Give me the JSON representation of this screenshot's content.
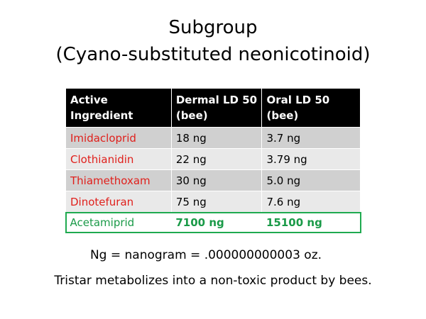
{
  "title": [
    "Subgroup",
    "(Cyano-substituted neonicotinoid)"
  ],
  "table": {
    "header": [
      [
        "Active",
        "Ingredient"
      ],
      [
        "Dermal LD 50",
        "(bee)"
      ],
      [
        "Oral LD 50",
        "(bee)"
      ]
    ],
    "rows": [
      [
        "Imidacloprid",
        "18 ng",
        "3.7 ng"
      ],
      [
        "Clothianidin",
        "22 ng",
        "3.79 ng"
      ],
      [
        "Thiamethoxam",
        "30 ng",
        "5.0 ng"
      ],
      [
        "Dinotefuran",
        "75 ng",
        "7.6 ng"
      ],
      [
        "Acetamiprid",
        "7100 ng",
        "15100 ng"
      ]
    ]
  },
  "notes": [
    "Ng = nanogram = .000000000003 oz.",
    "Tristar metabolizes  into a non-toxic product by bees."
  ]
}
